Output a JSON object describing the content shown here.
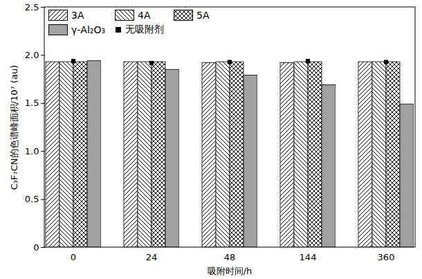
{
  "chart_data": {
    "type": "bar",
    "categories": [
      "0",
      "24",
      "48",
      "144",
      "360"
    ],
    "x_label": "吸附时间/h",
    "y_label": "C₃F₇CN的色谱峰面积/10⁷ (au)",
    "series": [
      {
        "name": "3A",
        "type": "bar",
        "color": "#000000",
        "values": [
          1.93,
          1.93,
          1.92,
          1.92,
          1.93
        ]
      },
      {
        "name": "4A",
        "type": "bar",
        "color": "#000000",
        "values": [
          1.93,
          1.93,
          1.93,
          1.93,
          1.93
        ]
      },
      {
        "name": "5A",
        "type": "bar",
        "color": "#000000",
        "values": [
          1.93,
          1.93,
          1.93,
          1.93,
          1.93
        ]
      },
      {
        "name": "γ-Al₂O₃",
        "type": "bar",
        "color": "#a0a0a0",
        "values": [
          1.94,
          1.85,
          1.79,
          1.69,
          1.49
        ]
      },
      {
        "name": "无吸附剂",
        "type": "scatter",
        "marker": "square",
        "color": "#000000",
        "values": [
          1.94,
          1.92,
          1.93,
          1.94,
          1.93
        ]
      }
    ],
    "ylim": [
      0,
      2.5
    ],
    "yticks": [
      0,
      0.5,
      {
        "value": 1,
        "label": "1.0"
      },
      1.5,
      {
        "value": 2,
        "label": "2.0"
      },
      2.5
    ],
    "grid": false,
    "legend": "top-left"
  }
}
